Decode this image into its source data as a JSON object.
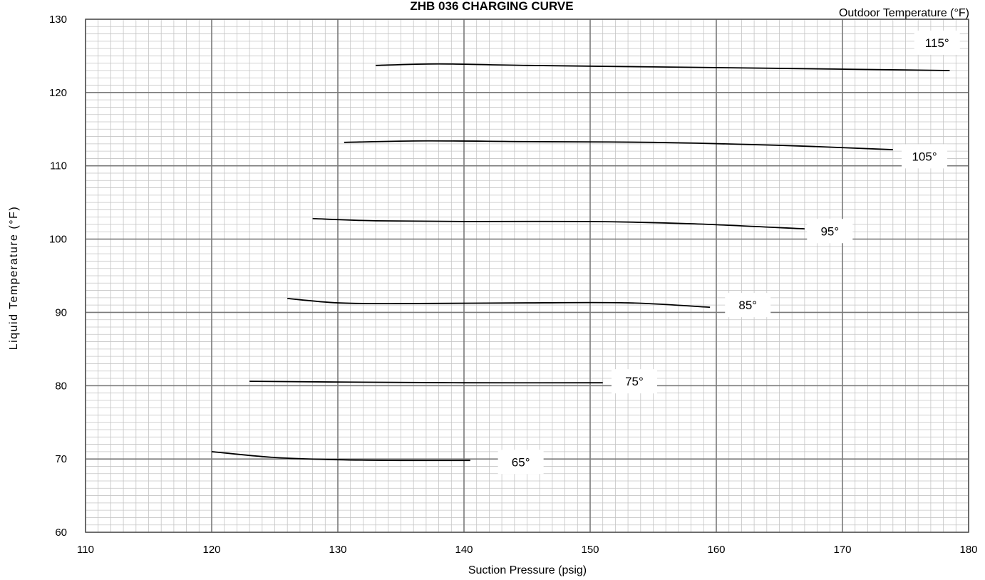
{
  "chart_data": {
    "type": "line",
    "title": "ZHB 036 CHARGING CURVE",
    "legend_title": "Outdoor Temperature (°F)",
    "xlabel": "Suction Pressure (psig)",
    "ylabel": "Liquid Temperature (°F)",
    "xlim": [
      110,
      180
    ],
    "ylim": [
      60,
      130
    ],
    "x_ticks": [
      110,
      120,
      130,
      140,
      150,
      160,
      170,
      180
    ],
    "y_ticks": [
      60,
      70,
      80,
      90,
      100,
      110,
      120,
      130
    ],
    "grid": true,
    "series": [
      {
        "name": "115°",
        "label_at": [
          177.5,
          126.8
        ],
        "points": [
          [
            133,
            123.7
          ],
          [
            138,
            123.9
          ],
          [
            145,
            123.7
          ],
          [
            155,
            123.5
          ],
          [
            165,
            123.3
          ],
          [
            178.5,
            123.0
          ]
        ]
      },
      {
        "name": "105°",
        "label_at": [
          176.5,
          111.3
        ],
        "points": [
          [
            130.5,
            113.2
          ],
          [
            137,
            113.4
          ],
          [
            145,
            113.3
          ],
          [
            155,
            113.2
          ],
          [
            165,
            112.8
          ],
          [
            174,
            112.2
          ]
        ]
      },
      {
        "name": "95°",
        "label_at": [
          169,
          101.1
        ],
        "points": [
          [
            128,
            102.8
          ],
          [
            133,
            102.5
          ],
          [
            140,
            102.4
          ],
          [
            150,
            102.4
          ],
          [
            158,
            102.1
          ],
          [
            167,
            101.4
          ]
        ]
      },
      {
        "name": "85°",
        "label_at": [
          162.5,
          91.0
        ],
        "points": [
          [
            126,
            91.9
          ],
          [
            130,
            91.3
          ],
          [
            135,
            91.2
          ],
          [
            145,
            91.3
          ],
          [
            153,
            91.3
          ],
          [
            159.5,
            90.7
          ]
        ]
      },
      {
        "name": "75°",
        "label_at": [
          153.5,
          80.6
        ],
        "points": [
          [
            123,
            80.6
          ],
          [
            130,
            80.5
          ],
          [
            140,
            80.4
          ],
          [
            151,
            80.4
          ]
        ]
      },
      {
        "name": "65°",
        "label_at": [
          144.5,
          69.6
        ],
        "points": [
          [
            120,
            71.0
          ],
          [
            125,
            70.2
          ],
          [
            130,
            69.9
          ],
          [
            135,
            69.8
          ],
          [
            140.5,
            69.8
          ]
        ]
      }
    ]
  }
}
